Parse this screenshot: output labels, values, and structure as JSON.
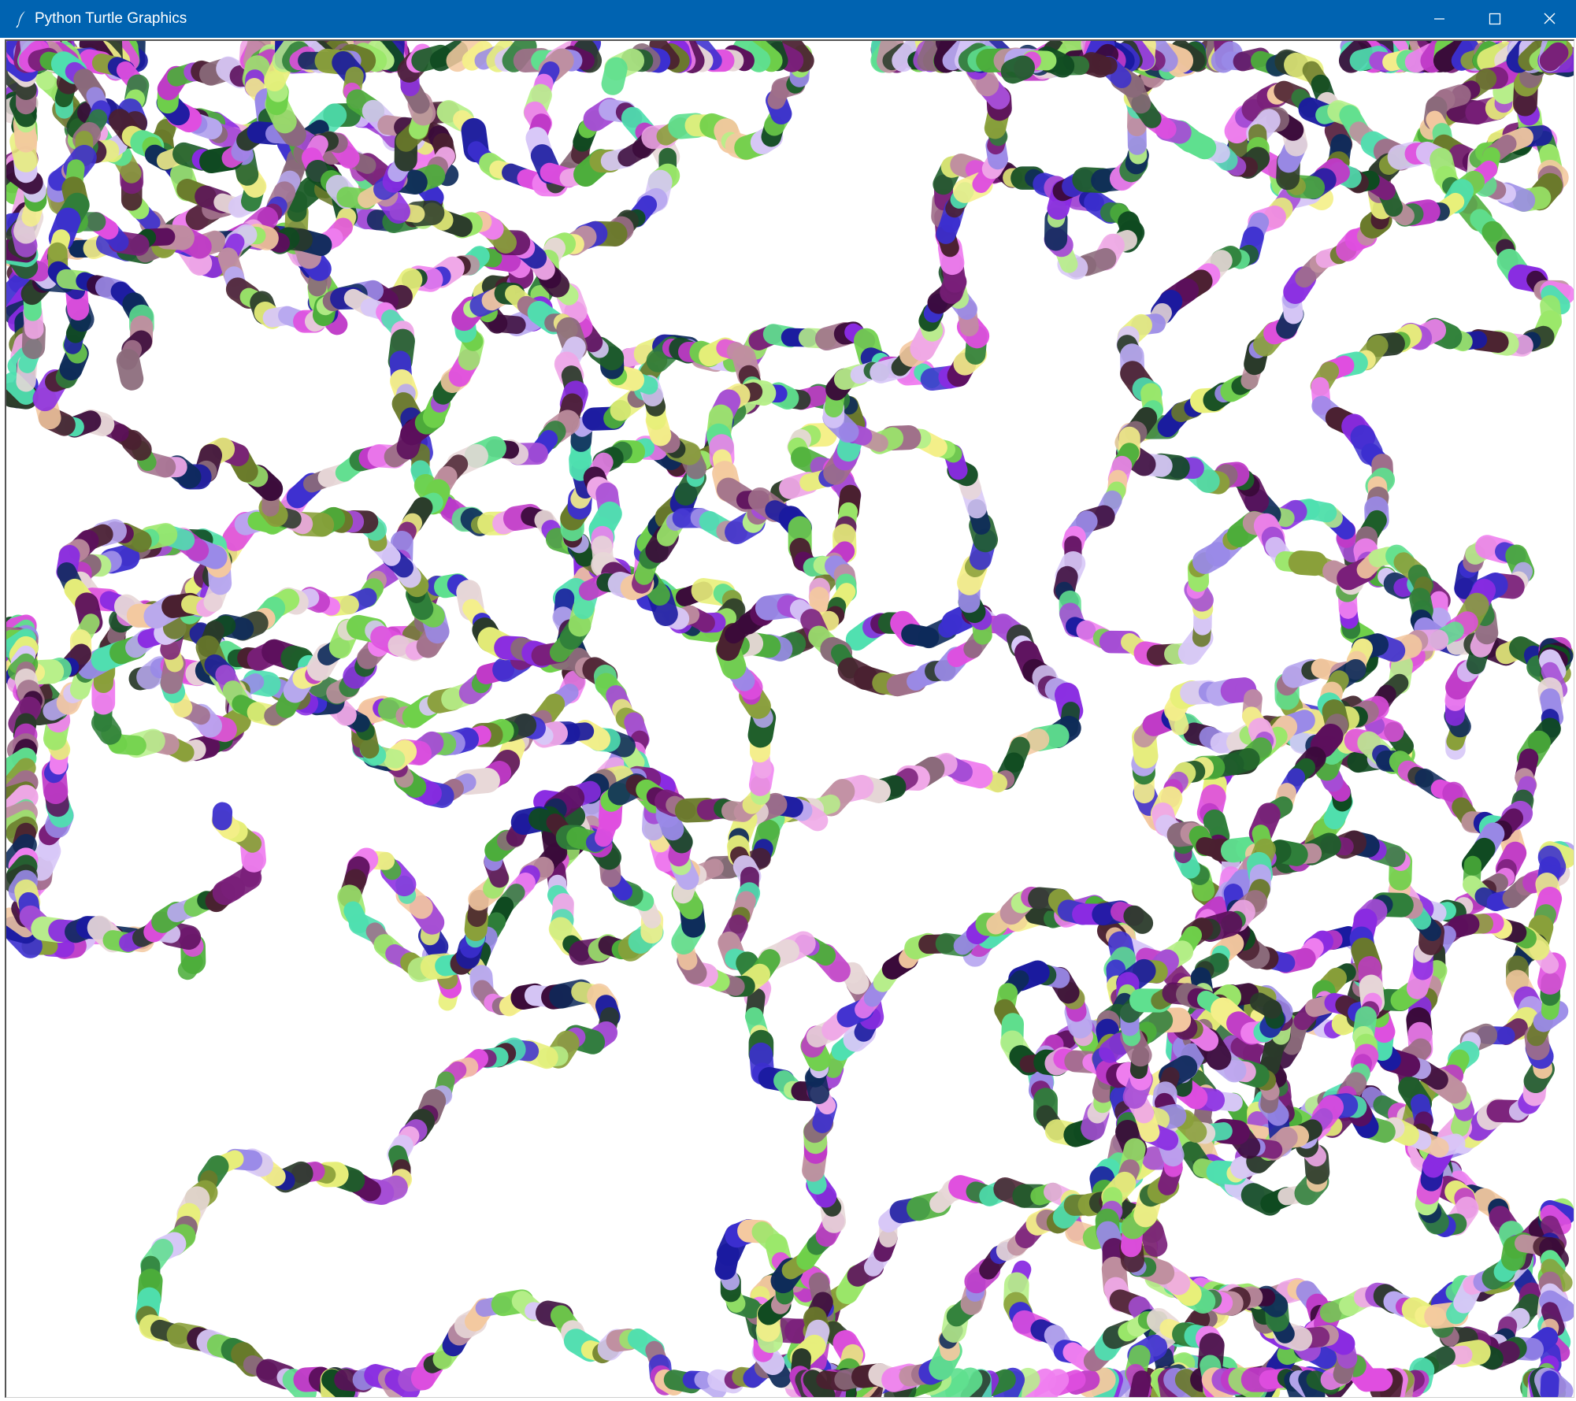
{
  "window": {
    "title": "Python Turtle Graphics",
    "titlebar_color": "#0063b1",
    "controls": [
      "minimize-icon",
      "maximize-icon",
      "close-icon"
    ]
  },
  "canvas": {
    "background": "#ffffff"
  }
}
